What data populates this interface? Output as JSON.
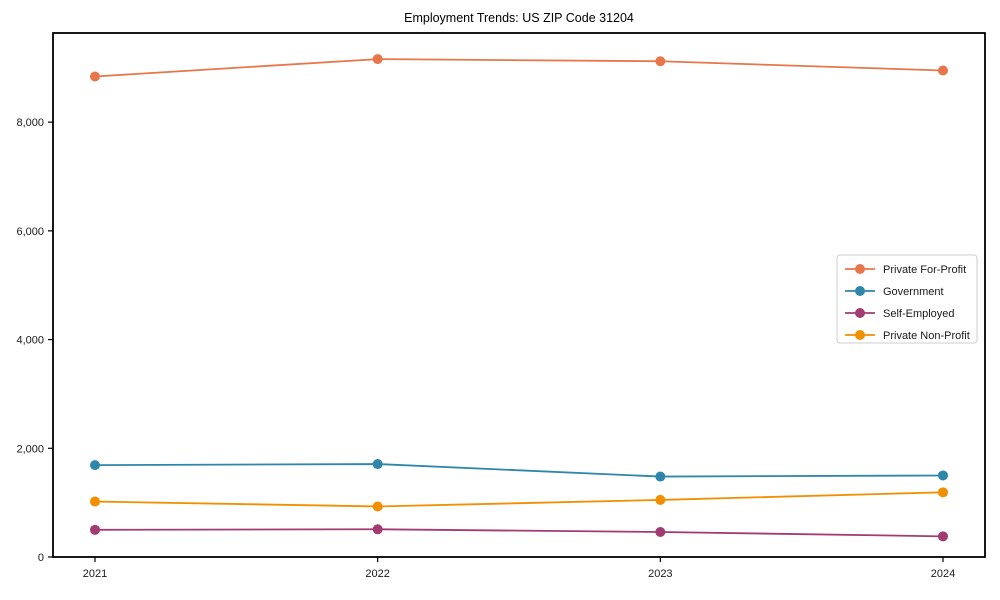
{
  "chart_data": {
    "type": "line",
    "title": "Employment Trends: US ZIP Code 31204",
    "xlabel": "",
    "ylabel": "",
    "x_tick_labels": [
      "2021",
      "2022",
      "2023",
      "2024"
    ],
    "series": [
      {
        "name": "Private For-Profit",
        "color": "#E8764A",
        "values": [
          8840,
          9160,
          9120,
          8950
        ]
      },
      {
        "name": "Government",
        "color": "#2E86AB",
        "values": [
          1690,
          1710,
          1480,
          1500
        ]
      },
      {
        "name": "Self-Employed",
        "color": "#A23B72",
        "values": [
          500,
          510,
          460,
          380
        ]
      },
      {
        "name": "Private Non-Profit",
        "color": "#F18F01",
        "values": [
          1020,
          930,
          1050,
          1190
        ]
      }
    ],
    "ylim": [
      0,
      9640
    ],
    "yticks": [
      0,
      2000,
      4000,
      6000,
      8000
    ],
    "ytick_labels": [
      "0",
      "2,000",
      "4,000",
      "6,000",
      "8,000"
    ],
    "grid": false,
    "legend": {
      "position": "center-right",
      "frame": true,
      "frame_color": "#cccccc",
      "background": "#ffffff"
    },
    "marker": "circle",
    "background": "#ffffff",
    "spine_color": "#000000"
  }
}
